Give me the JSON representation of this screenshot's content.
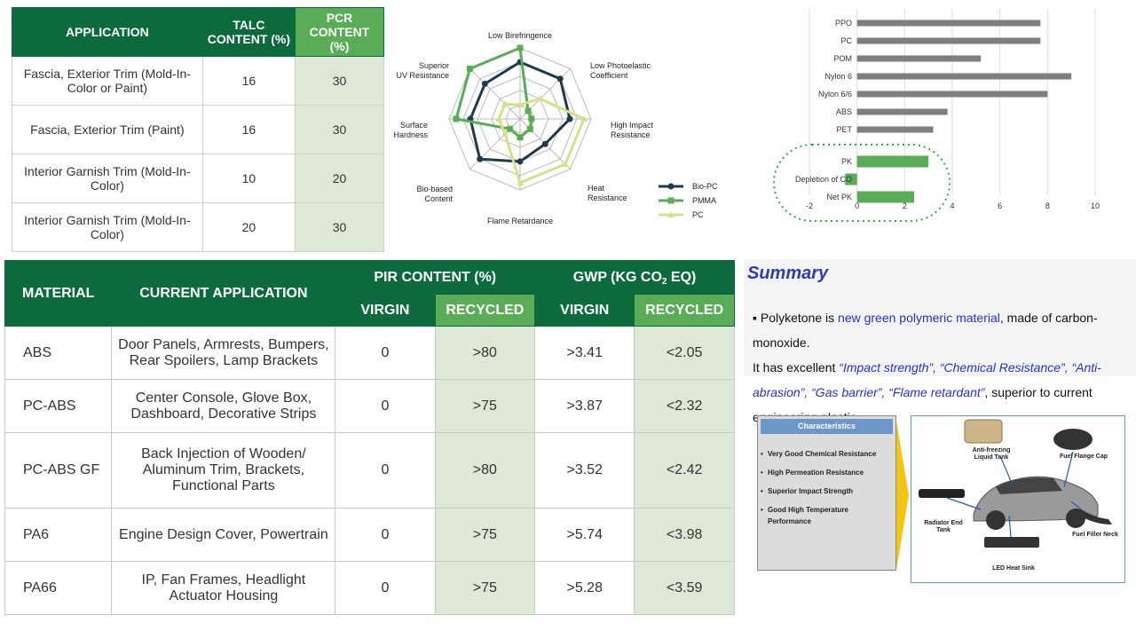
{
  "talc_table": {
    "headers": [
      "APPLICATION",
      "TALC CONTENT (%)",
      "PCR CONTENT (%)"
    ],
    "rows": [
      {
        "application": "Fascia, Exterior Trim (Mold-In-Color or Paint)",
        "talc": "16",
        "pcr": "30"
      },
      {
        "application": "Fascia, Exterior Trim (Paint)",
        "talc": "16",
        "pcr": "30"
      },
      {
        "application": "Interior Garnish Trim (Mold-In-Color)",
        "talc": "10",
        "pcr": "20"
      },
      {
        "application": "Interior Garnish Trim (Mold-In-Color)",
        "talc": "20",
        "pcr": "30"
      }
    ]
  },
  "material_table": {
    "headers": {
      "material": "MATERIAL",
      "application": "CURRENT APPLICATION",
      "pir": "PIR CONTENT (%)",
      "gwp_prefix": "GWP (KG CO",
      "gwp_sub": "2",
      "gwp_suffix": " EQ)",
      "virgin": "VIRGIN",
      "recycled": "RECYCLED"
    },
    "rows": [
      {
        "material": "ABS",
        "application": "Door Panels, Armrests, Bumpers, Rear Spoilers, Lamp Brackets",
        "pir_virgin": "0",
        "pir_recycled": ">80",
        "gwp_virgin": ">3.41",
        "gwp_recycled": "<2.05"
      },
      {
        "material": "PC-ABS",
        "application": "Center Console, Glove Box, Dashboard, Decorative Strips",
        "pir_virgin": "0",
        "pir_recycled": ">75",
        "gwp_virgin": ">3.87",
        "gwp_recycled": "<2.32"
      },
      {
        "material": "PC-ABS GF",
        "application": "Back Injection of Wooden/ Aluminum Trim, Brackets, Functional Parts",
        "pir_virgin": "0",
        "pir_recycled": ">80",
        "gwp_virgin": ">3.52",
        "gwp_recycled": "<2.42"
      },
      {
        "material": "PA6",
        "application": "Engine Design Cover, Powertrain",
        "pir_virgin": "0",
        "pir_recycled": ">75",
        "gwp_virgin": ">5.74",
        "gwp_recycled": "<3.98"
      },
      {
        "material": "PA66",
        "application": "IP, Fan Frames, Headlight Actuator Housing",
        "pir_virgin": "0",
        "pir_recycled": ">75",
        "gwp_virgin": ">5.28",
        "gwp_recycled": "<3.59"
      }
    ]
  },
  "chart_data": [
    {
      "type": "radar",
      "axes": [
        "Low Birefringence",
        "Low Photoelastic Coefficient",
        "High Impact Resistance",
        "Heat Resistance",
        "Flame Retardance",
        "Bio-based Content",
        "Surface Hardness",
        "Superior UV Resistance"
      ],
      "scale_max": 5,
      "legend_position": "right",
      "series": [
        {
          "name": "Bio-PC",
          "color": "#1f3a4d",
          "values": [
            4,
            4,
            3.5,
            2.5,
            3,
            4,
            3.5,
            3.5
          ]
        },
        {
          "name": "PMMA",
          "color": "#5aac56",
          "values": [
            5,
            0.8,
            0.8,
            1,
            1.3,
            1,
            4.5,
            5
          ]
        },
        {
          "name": "PC",
          "color": "#d4e08a",
          "values": [
            1,
            2,
            4.5,
            4.5,
            4.5,
            1.5,
            1.5,
            1.5
          ]
        }
      ]
    },
    {
      "type": "bar",
      "orientation": "horizontal",
      "categories": [
        "PPO",
        "PC",
        "POM",
        "Nylon 6",
        "Nylon 6/6",
        "ABS",
        "PET",
        "PK",
        "Depletion of CO",
        "Net PK"
      ],
      "values": [
        7.7,
        7.7,
        5.2,
        9.0,
        8.0,
        3.8,
        3.2,
        3.0,
        -0.5,
        2.4
      ],
      "colors": {
        "other": "#7f7f7f",
        "pk": "#5aac56"
      },
      "highlighted": [
        "PK",
        "Depletion of CO",
        "Net PK"
      ],
      "xlim": [
        -2,
        10
      ],
      "xticks": [
        "-2",
        "0",
        "2",
        "4",
        "6",
        "8",
        "10"
      ],
      "grid": "vertical"
    }
  ],
  "summary": {
    "title": "Summary",
    "bullet": "▪",
    "p1": "Polyketone is ",
    "p2": "new green polymeric material",
    "p3": ", made of carbon-monoxide.",
    "p4": "It has excellent ",
    "p5": "“Impact strength”, “Chemical Resistance”, “Anti-abrasion”, “Gas barrier”, “Flame retardant”",
    "p6": ", superior to current engineering plastic."
  },
  "characteristics": {
    "title": "Characteristics",
    "items": [
      "Very Good Chemical Resistance",
      "High Permeation Resistance",
      "Superior Impact Strength",
      "Good High Temperature Performance"
    ]
  },
  "car_parts": {
    "antifreeze": "Anti-freezing Liquid Tank",
    "flange": "Fuel Flange Cap",
    "radiator": "Radiator End Tank",
    "filler": "Fuel Filler Neck",
    "led": "LED Heat Sink"
  }
}
